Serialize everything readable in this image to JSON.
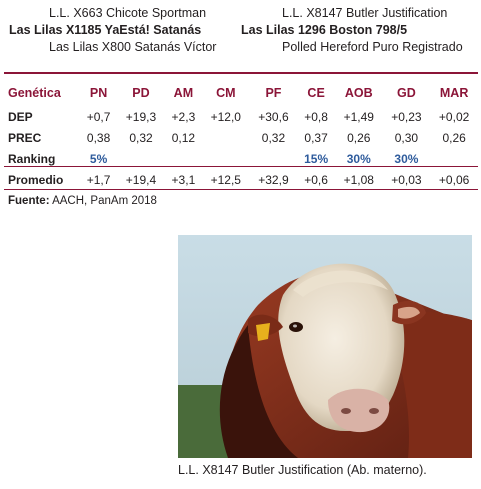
{
  "pedigree": {
    "sire_sire": "L.L. X663 Chicote Sportman",
    "sire": "Las Lilas X1185 YaEstá! Satanás",
    "sire_dam": "Las Lilas X800 Satanás Víctor",
    "dam_sire": "L.L. X8147 Butler Justification",
    "dam": "Las Lilas 1296 Boston 798/5",
    "dam_dam": "Polled Hereford Puro Registrado"
  },
  "table": {
    "header_label": "Genética",
    "columns": [
      "PN",
      "PD",
      "AM",
      "CM",
      "PF",
      "CE",
      "AOB",
      "GD",
      "MAR"
    ],
    "rows": [
      {
        "label": "DEP",
        "values": [
          "+0,7",
          "+19,3",
          "+2,3",
          "+12,0",
          "+30,6",
          "+0,8",
          "+1,49",
          "+0,23",
          "+0,02"
        ]
      },
      {
        "label": "PREC",
        "values": [
          "0,38",
          "0,32",
          "0,12",
          "",
          "0,32",
          "0,37",
          "0,26",
          "0,30",
          "0,26"
        ]
      },
      {
        "label": "Ranking",
        "values": [
          "5%",
          "",
          "",
          "",
          "",
          "15%",
          "30%",
          "30%",
          ""
        ]
      },
      {
        "label": "Promedio",
        "values": [
          "+1,7",
          "+19,4",
          "+3,1",
          "+12,5",
          "+32,9",
          "+0,6",
          "+1,08",
          "+0,03",
          "+0,06"
        ]
      }
    ]
  },
  "source": {
    "label": "Fuente:",
    "text": "AACH, PanAm 2018"
  },
  "photo": {
    "caption": "L.L. X8147 Butler Justification (Ab. materno)."
  },
  "colors": {
    "accent": "#8b1538",
    "ranking_blue": "#2e5b9c"
  }
}
